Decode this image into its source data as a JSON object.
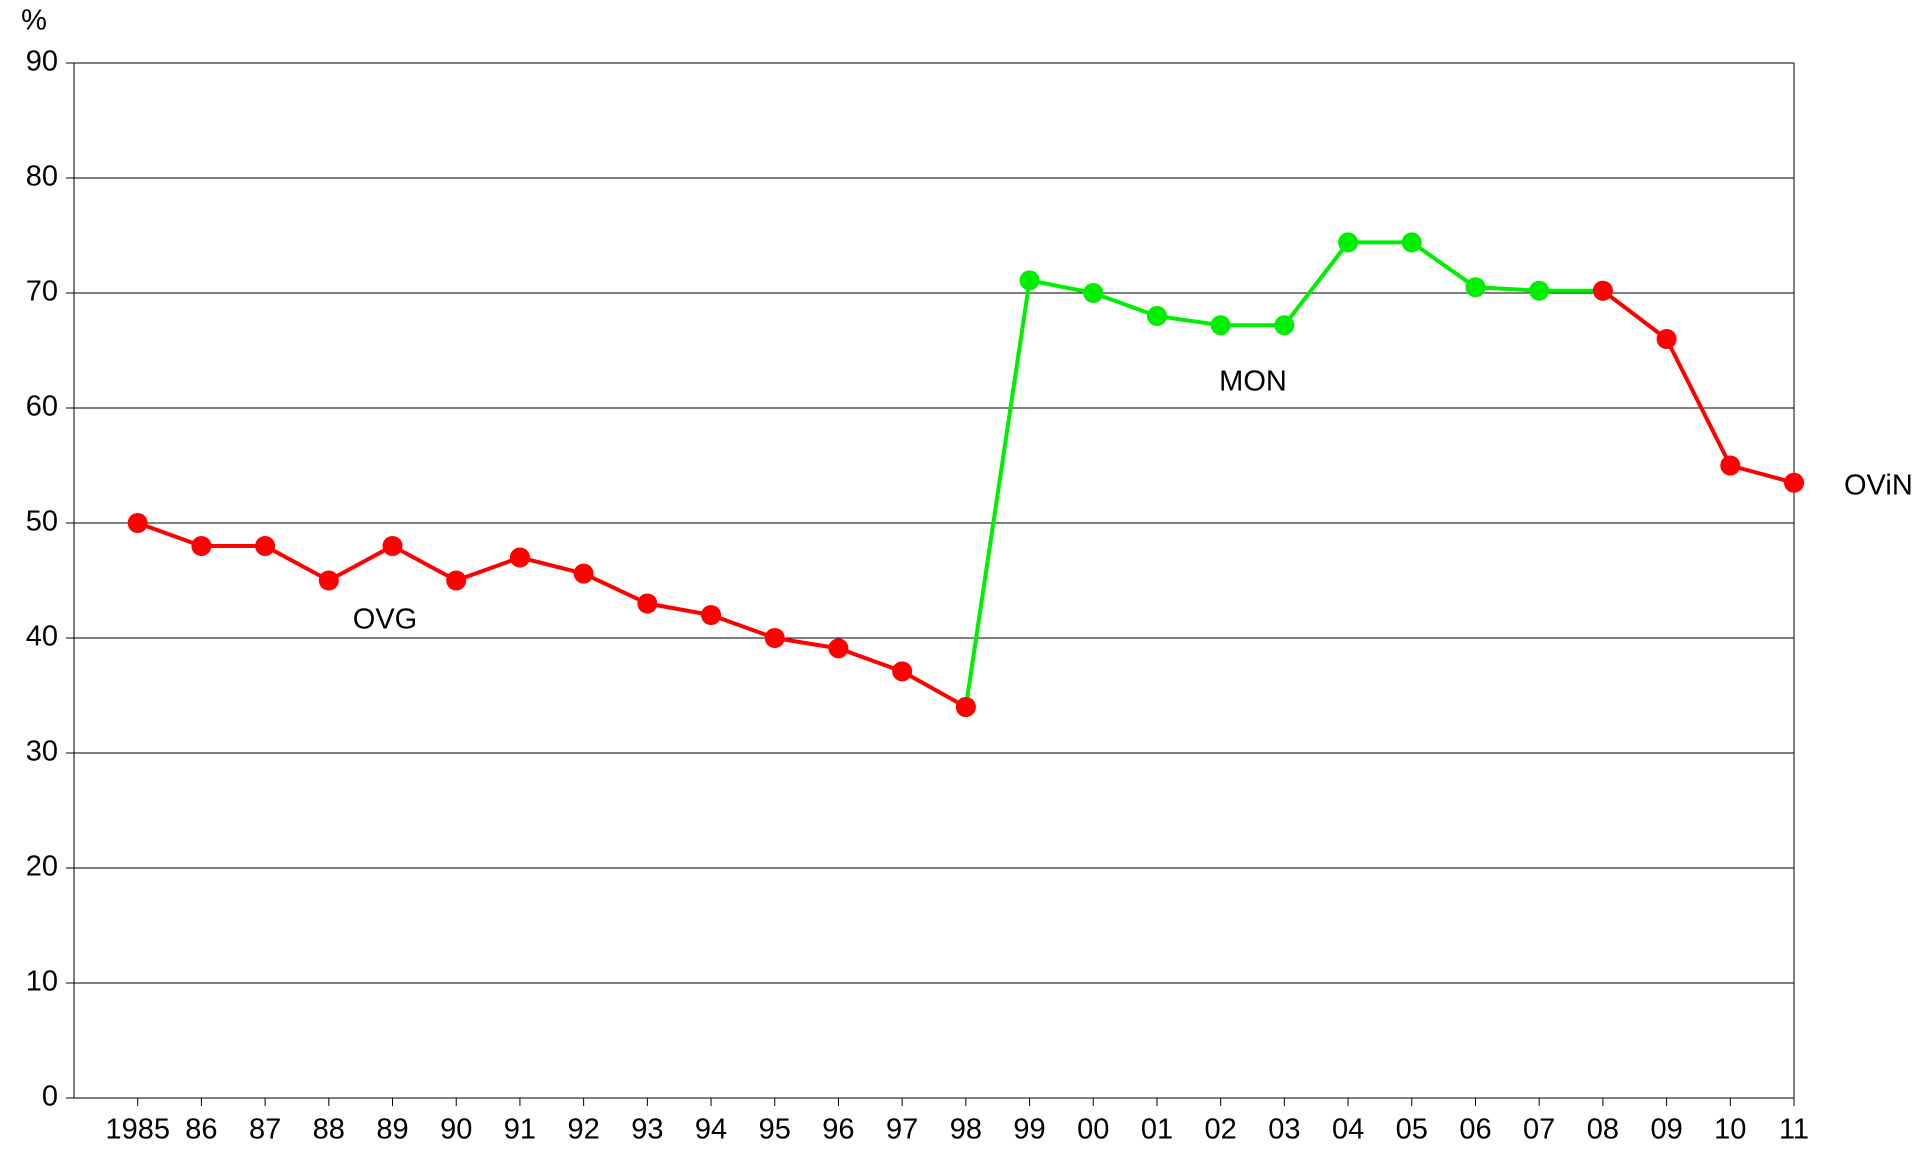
{
  "chart_data": {
    "type": "line",
    "y_label": "%",
    "categories": [
      "1985",
      "86",
      "87",
      "88",
      "89",
      "90",
      "91",
      "92",
      "93",
      "94",
      "95",
      "96",
      "97",
      "98",
      "99",
      "00",
      "01",
      "02",
      "03",
      "04",
      "05",
      "06",
      "07",
      "08",
      "09",
      "10",
      "11"
    ],
    "series": [
      {
        "color": "#ff0000",
        "values": [
          50,
          48,
          48,
          45,
          48,
          45,
          47,
          45.6,
          43,
          42,
          40,
          39.1,
          37.1,
          34,
          null,
          null,
          null,
          null,
          null,
          null,
          null,
          null,
          null,
          70.2,
          66,
          55,
          53.5
        ]
      },
      {
        "color": "#00ee00",
        "values": [
          null,
          null,
          null,
          null,
          null,
          null,
          null,
          null,
          null,
          null,
          null,
          null,
          null,
          34,
          71.1,
          70,
          68,
          67.2,
          67.2,
          74.4,
          74.4,
          70.5,
          70.2,
          70.2,
          null,
          null,
          null
        ]
      }
    ],
    "annotations": [
      "OVG",
      "MON",
      "OViN"
    ],
    "ylim": [
      0,
      90
    ],
    "yticks": [
      0,
      10,
      20,
      30,
      40,
      50,
      60,
      70,
      80,
      90
    ],
    "grid": true
  }
}
